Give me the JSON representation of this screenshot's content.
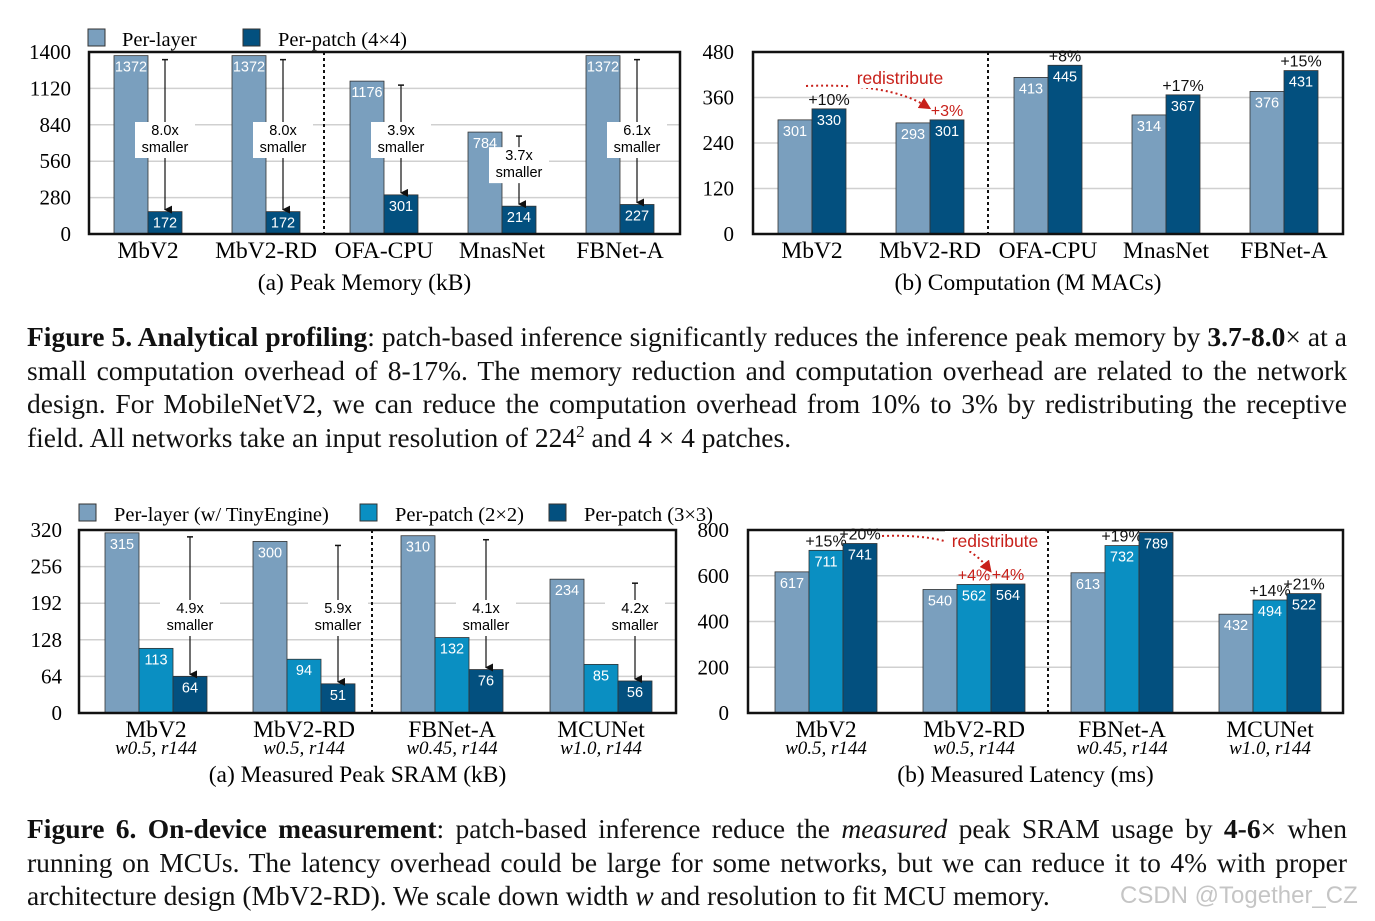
{
  "figure5": {
    "caption": {
      "label": "Figure 5.  Analytical profiling",
      "text1": ": patch-based inference significantly reduces the inference peak memory by ",
      "bold_range": "3.7-8.0",
      "text2": "× at a small computation overhead of 8-17%. The memory reduction and computation overhead are related to the network design. For MobileNetV2, we can reduce the computation overhead from 10% to 3% by redistributing the receptive field. All networks take an input resolution of 224",
      "sup": "2",
      "text3": " and 4 × 4 patches."
    }
  },
  "figure6": {
    "caption": {
      "label": "Figure 6. On-device measurement",
      "text1": ": patch-based inference reduce the ",
      "italic1": "measured",
      "text2": " peak SRAM usage by ",
      "bold_range": "4-6",
      "text3": "× when running on MCUs. The latency overhead could be large for some networks, but we can reduce it to 4% with proper architecture design (MbV2-RD). We scale down width ",
      "italic2": "w",
      "text4": " and resolution to fit MCU memory."
    }
  },
  "watermark": "CSDN @Together_CZ",
  "colors": {
    "per_layer": "#7a9fbe",
    "per_patch_2x2": "#0a8fc2",
    "per_patch_dark": "#03507f",
    "annotation_red": "#c8201a"
  },
  "chart_data": [
    {
      "type": "bar",
      "title": "(a) Peak Memory (kB)",
      "categories": [
        "MbV2",
        "MbV2-RD",
        "OFA-CPU",
        "MnasNet",
        "FBNet-A"
      ],
      "ylim": [
        0,
        1400
      ],
      "yticks": [
        "0",
        "280",
        "560",
        "840",
        "1120",
        "1400"
      ],
      "grid": true,
      "legend": "top",
      "separator_after": 1,
      "series": [
        {
          "name": "Per-layer",
          "color": "#7a9fbe",
          "values": [
            1372,
            1372,
            1176,
            784,
            1372
          ]
        },
        {
          "name": "Per-patch (4×4)",
          "color": "#03507f",
          "values": [
            172,
            172,
            301,
            214,
            227
          ]
        }
      ],
      "reduction_labels": [
        [
          "8.0x",
          "smaller"
        ],
        [
          "8.0x",
          "smaller"
        ],
        [
          "3.9x",
          "smaller"
        ],
        [
          "3.7x",
          "smaller"
        ],
        [
          "6.1x",
          "smaller"
        ]
      ]
    },
    {
      "type": "bar",
      "title": "(b) Computation (M MACs)",
      "categories": [
        "MbV2",
        "MbV2-RD",
        "OFA-CPU",
        "MnasNet",
        "FBNet-A"
      ],
      "ylim": [
        0,
        480
      ],
      "yticks": [
        "0",
        "120",
        "240",
        "360",
        "480"
      ],
      "grid": true,
      "separator_after": 1,
      "series": [
        {
          "name": "Per-layer",
          "color": "#7a9fbe",
          "values": [
            301,
            293,
            413,
            314,
            376
          ]
        },
        {
          "name": "Per-patch (4×4)",
          "color": "#03507f",
          "values": [
            330,
            301,
            445,
            367,
            431
          ],
          "overhead": [
            "+10%",
            "+3%",
            "+8%",
            "+17%",
            "+15%"
          ],
          "overhead_red": [
            false,
            true,
            false,
            false,
            false
          ]
        }
      ],
      "annotation": "redistribute"
    },
    {
      "type": "bar",
      "title": "(a) Measured Peak SRAM (kB)",
      "categories": [
        "MbV2",
        "MbV2-RD",
        "FBNet-A",
        "MCUNet"
      ],
      "subcategories": [
        "w0.5, r144",
        "w0.5, r144",
        "w0.45, r144",
        "w1.0, r144"
      ],
      "ylim": [
        0,
        320
      ],
      "yticks": [
        "0",
        "64",
        "128",
        "192",
        "256",
        "320"
      ],
      "grid": true,
      "legend": "top",
      "separator_after": 1,
      "series": [
        {
          "name": "Per-layer (w/ TinyEngine)",
          "color": "#7a9fbe",
          "values": [
            315,
            300,
            310,
            234
          ]
        },
        {
          "name": "Per-patch (2×2)",
          "color": "#0a8fc2",
          "values": [
            113,
            94,
            132,
            85
          ]
        },
        {
          "name": "Per-patch (3×3)",
          "color": "#03507f",
          "values": [
            64,
            51,
            76,
            56
          ]
        }
      ],
      "reduction_labels": [
        [
          "4.9x",
          "smaller"
        ],
        [
          "5.9x",
          "smaller"
        ],
        [
          "4.1x",
          "smaller"
        ],
        [
          "4.2x",
          "smaller"
        ]
      ]
    },
    {
      "type": "bar",
      "title": "(b) Measured Latency (ms)",
      "categories": [
        "MbV2",
        "MbV2-RD",
        "FBNet-A",
        "MCUNet"
      ],
      "subcategories": [
        "w0.5, r144",
        "w0.5, r144",
        "w0.45, r144",
        "w1.0, r144"
      ],
      "ylim": [
        0,
        800
      ],
      "yticks": [
        "0",
        "200",
        "400",
        "600",
        "800"
      ],
      "grid": true,
      "separator_after": 1,
      "series": [
        {
          "name": "Per-layer (w/ TinyEngine)",
          "color": "#7a9fbe",
          "values": [
            617,
            540,
            613,
            432
          ]
        },
        {
          "name": "Per-patch (2×2)",
          "color": "#0a8fc2",
          "values": [
            711,
            562,
            732,
            494
          ],
          "overhead": [
            "+15%",
            "+4%",
            "+19%",
            "+14%"
          ],
          "overhead_red": [
            false,
            true,
            false,
            false
          ]
        },
        {
          "name": "Per-patch (3×3)",
          "color": "#03507f",
          "values": [
            741,
            564,
            789,
            522
          ],
          "overhead": [
            "+20%",
            "+4%",
            "",
            "+21%"
          ],
          "overhead_red": [
            false,
            true,
            false,
            false
          ]
        }
      ],
      "annotation": "redistribute"
    }
  ]
}
